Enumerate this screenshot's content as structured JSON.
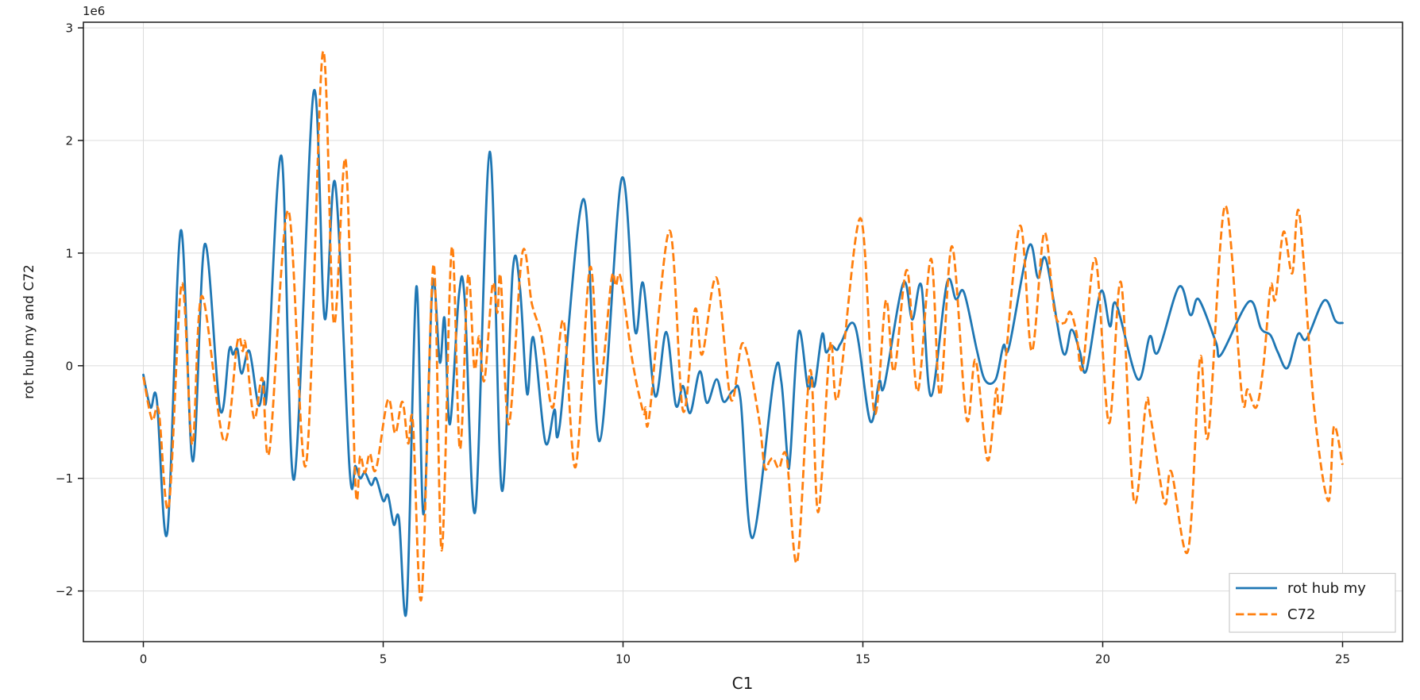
{
  "figure": {
    "background": "#ffffff",
    "grid_color": "#dcdcdc",
    "spine_color": "#262626",
    "tick_color": "#1a1a1a"
  },
  "chart_data": {
    "type": "line",
    "title": "",
    "xlabel": "C1",
    "ylabel": "rot hub my and C72",
    "y_offset_text": "1e6",
    "y_multiplier": 1000000,
    "xlim": [
      -1.25,
      26.25
    ],
    "ylim": [
      -2.45,
      3.05
    ],
    "x_ticks": [
      0,
      5,
      10,
      15,
      20,
      25
    ],
    "y_ticks": [
      -2,
      -1,
      0,
      1,
      2,
      3
    ],
    "grid": true,
    "legend": {
      "location": "lower right",
      "entries": [
        "rot hub my",
        "C72"
      ]
    },
    "series": [
      {
        "name": "rot hub my",
        "color": "#1f77b4",
        "linestyle": "solid",
        "linewidth": 2.8,
        "points": [
          [
            0,
            -0.08
          ],
          [
            0.15,
            -0.37
          ],
          [
            0.28,
            -0.3
          ],
          [
            0.5,
            -1.48
          ],
          [
            0.78,
            1.2
          ],
          [
            1.03,
            -0.85
          ],
          [
            1.28,
            1.08
          ],
          [
            1.6,
            -0.39
          ],
          [
            1.79,
            0.14
          ],
          [
            1.87,
            0.1
          ],
          [
            1.96,
            0.15
          ],
          [
            2.05,
            -0.07
          ],
          [
            2.21,
            0.13
          ],
          [
            2.4,
            -0.35
          ],
          [
            2.51,
            -0.14
          ],
          [
            2.58,
            -0.22
          ],
          [
            2.88,
            1.86
          ],
          [
            3.14,
            -1.01
          ],
          [
            3.55,
            2.43
          ],
          [
            3.78,
            0.42
          ],
          [
            4,
            1.62
          ],
          [
            4.3,
            -0.92
          ],
          [
            4.42,
            -0.89
          ],
          [
            4.52,
            -1
          ],
          [
            4.62,
            -0.95
          ],
          [
            4.75,
            -1.06
          ],
          [
            4.85,
            -1
          ],
          [
            5,
            -1.2
          ],
          [
            5.1,
            -1.15
          ],
          [
            5.22,
            -1.41
          ],
          [
            5.33,
            -1.36
          ],
          [
            5.49,
            -2.15
          ],
          [
            5.69,
            0.7
          ],
          [
            5.84,
            -1.32
          ],
          [
            6.03,
            0.73
          ],
          [
            6.18,
            0.03
          ],
          [
            6.28,
            0.42
          ],
          [
            6.39,
            -0.52
          ],
          [
            6.58,
            0.63
          ],
          [
            6.7,
            0.58
          ],
          [
            6.92,
            -1.29
          ],
          [
            7.22,
            1.9
          ],
          [
            7.47,
            -1.1
          ],
          [
            7.7,
            0.84
          ],
          [
            7.85,
            0.7
          ],
          [
            8,
            -0.25
          ],
          [
            8.13,
            0.25
          ],
          [
            8.38,
            -0.68
          ],
          [
            8.57,
            -0.39
          ],
          [
            8.68,
            -0.53
          ],
          [
            9.18,
            1.48
          ],
          [
            9.51,
            -0.67
          ],
          [
            9.97,
            1.66
          ],
          [
            10.25,
            0.31
          ],
          [
            10.42,
            0.73
          ],
          [
            10.67,
            -0.27
          ],
          [
            10.9,
            0.3
          ],
          [
            11.1,
            -0.35
          ],
          [
            11.25,
            -0.18
          ],
          [
            11.4,
            -0.42
          ],
          [
            11.6,
            -0.05
          ],
          [
            11.75,
            -0.33
          ],
          [
            11.95,
            -0.12
          ],
          [
            12.1,
            -0.32
          ],
          [
            12.3,
            -0.22
          ],
          [
            12.45,
            -0.3
          ],
          [
            12.7,
            -1.53
          ],
          [
            13.15,
            -0.09
          ],
          [
            13.3,
            -0.14
          ],
          [
            13.43,
            -0.83
          ],
          [
            13.49,
            -0.78
          ],
          [
            13.66,
            0.3
          ],
          [
            13.85,
            -0.19
          ],
          [
            13.93,
            -0.1
          ],
          [
            14,
            -0.17
          ],
          [
            14.15,
            0.28
          ],
          [
            14.23,
            0.12
          ],
          [
            14.34,
            0.18
          ],
          [
            14.46,
            0.14
          ],
          [
            14.54,
            0.2
          ],
          [
            14.84,
            0.35
          ],
          [
            15.15,
            -0.49
          ],
          [
            15.34,
            -0.14
          ],
          [
            15.45,
            -0.17
          ],
          [
            15.84,
            0.73
          ],
          [
            16.03,
            0.41
          ],
          [
            16.22,
            0.71
          ],
          [
            16.42,
            -0.27
          ],
          [
            16.75,
            0.73
          ],
          [
            16.94,
            0.59
          ],
          [
            17.11,
            0.65
          ],
          [
            17.38,
            0.13
          ],
          [
            17.55,
            -0.13
          ],
          [
            17.77,
            -0.12
          ],
          [
            17.93,
            0.18
          ],
          [
            18.05,
            0.17
          ],
          [
            18.46,
            1.06
          ],
          [
            18.65,
            0.78
          ],
          [
            18.82,
            0.94
          ],
          [
            19.17,
            0.12
          ],
          [
            19.35,
            0.32
          ],
          [
            19.52,
            0.13
          ],
          [
            19.66,
            -0.04
          ],
          [
            19.96,
            0.66
          ],
          [
            20.15,
            0.35
          ],
          [
            20.28,
            0.55
          ],
          [
            20.73,
            -0.12
          ],
          [
            20.98,
            0.26
          ],
          [
            21.15,
            0.12
          ],
          [
            21.59,
            0.7
          ],
          [
            21.83,
            0.45
          ],
          [
            22,
            0.59
          ],
          [
            22.36,
            0.21
          ],
          [
            22.47,
            0.1
          ],
          [
            23.05,
            0.57
          ],
          [
            23.3,
            0.33
          ],
          [
            23.5,
            0.27
          ],
          [
            23.65,
            0.12
          ],
          [
            23.85,
            -0.02
          ],
          [
            24.07,
            0.28
          ],
          [
            24.25,
            0.24
          ],
          [
            24.62,
            0.58
          ],
          [
            24.85,
            0.4
          ],
          [
            25,
            0.38
          ]
        ]
      },
      {
        "name": "C72",
        "color": "#ff7f0e",
        "linestyle": "dashed",
        "linewidth": 2.8,
        "points": [
          [
            0,
            -0.1
          ],
          [
            0.18,
            -0.48
          ],
          [
            0.32,
            -0.4
          ],
          [
            0.53,
            -1.25
          ],
          [
            0.8,
            0.73
          ],
          [
            1.02,
            -0.7
          ],
          [
            1.22,
            0.62
          ],
          [
            1.68,
            -0.67
          ],
          [
            1.96,
            0.21
          ],
          [
            2.07,
            0.13
          ],
          [
            2.13,
            0.19
          ],
          [
            2.31,
            -0.47
          ],
          [
            2.48,
            -0.11
          ],
          [
            2.63,
            -0.75
          ],
          [
            3.02,
            1.38
          ],
          [
            3.39,
            -0.88
          ],
          [
            3.74,
            2.78
          ],
          [
            3.97,
            0.38
          ],
          [
            4.22,
            1.82
          ],
          [
            4.42,
            -1.05
          ],
          [
            4.52,
            -0.8
          ],
          [
            4.62,
            -0.95
          ],
          [
            4.72,
            -0.78
          ],
          [
            4.85,
            -0.92
          ],
          [
            5.1,
            -0.3
          ],
          [
            5.25,
            -0.6
          ],
          [
            5.4,
            -0.32
          ],
          [
            5.52,
            -0.69
          ],
          [
            5.62,
            -0.5
          ],
          [
            5.8,
            -2.06
          ],
          [
            6.05,
            0.9
          ],
          [
            6.22,
            -1.64
          ],
          [
            6.43,
            1.05
          ],
          [
            6.6,
            -0.74
          ],
          [
            6.77,
            0.8
          ],
          [
            6.9,
            -0.02
          ],
          [
            7,
            0.26
          ],
          [
            7.11,
            -0.13
          ],
          [
            7.28,
            0.72
          ],
          [
            7.38,
            0.47
          ],
          [
            7.45,
            0.78
          ],
          [
            7.62,
            -0.52
          ],
          [
            7.9,
            1
          ],
          [
            8.1,
            0.55
          ],
          [
            8.27,
            0.32
          ],
          [
            8.35,
            0.12
          ],
          [
            8.54,
            -0.37
          ],
          [
            8.76,
            0.4
          ],
          [
            9.01,
            -0.9
          ],
          [
            9.31,
            0.87
          ],
          [
            9.51,
            -0.16
          ],
          [
            9.76,
            0.77
          ],
          [
            9.85,
            0.71
          ],
          [
            9.95,
            0.78
          ],
          [
            10.2,
            0.03
          ],
          [
            10.42,
            -0.41
          ],
          [
            10.47,
            -0.37
          ],
          [
            10.55,
            -0.44
          ],
          [
            10.97,
            1.2
          ],
          [
            11.25,
            -0.4
          ],
          [
            11.5,
            0.5
          ],
          [
            11.65,
            0.1
          ],
          [
            11.95,
            0.78
          ],
          [
            12.25,
            -0.3
          ],
          [
            12.5,
            0.2
          ],
          [
            12.82,
            -0.43
          ],
          [
            12.95,
            -0.9
          ],
          [
            13.05,
            -0.85
          ],
          [
            13.13,
            -0.82
          ],
          [
            13.25,
            -0.91
          ],
          [
            13.41,
            -0.81
          ],
          [
            13.63,
            -1.74
          ],
          [
            13.9,
            -0.04
          ],
          [
            14.07,
            -1.3
          ],
          [
            14.32,
            0.19
          ],
          [
            14.48,
            -0.28
          ],
          [
            14.95,
            1.31
          ],
          [
            15.24,
            -0.42
          ],
          [
            15.48,
            0.58
          ],
          [
            15.65,
            -0.05
          ],
          [
            15.92,
            0.85
          ],
          [
            16.14,
            -0.23
          ],
          [
            16.42,
            0.95
          ],
          [
            16.61,
            -0.26
          ],
          [
            16.86,
            1.06
          ],
          [
            17.16,
            -0.47
          ],
          [
            17.35,
            0.05
          ],
          [
            17.6,
            -0.84
          ],
          [
            17.78,
            -0.21
          ],
          [
            17.88,
            -0.38
          ],
          [
            18.27,
            1.24
          ],
          [
            18.52,
            0.13
          ],
          [
            18.78,
            1.18
          ],
          [
            19,
            0.47
          ],
          [
            19.2,
            0.38
          ],
          [
            19.32,
            0.48
          ],
          [
            19.45,
            0.3
          ],
          [
            19.58,
            -0.02
          ],
          [
            19.85,
            0.95
          ],
          [
            20.13,
            -0.51
          ],
          [
            20.38,
            0.74
          ],
          [
            20.65,
            -1.2
          ],
          [
            20.9,
            -0.34
          ],
          [
            21,
            -0.46
          ],
          [
            21.29,
            -1.22
          ],
          [
            21.43,
            -0.94
          ],
          [
            21.78,
            -1.64
          ],
          [
            22.03,
            0.07
          ],
          [
            22.2,
            -0.62
          ],
          [
            22.55,
            1.42
          ],
          [
            22.9,
            -0.26
          ],
          [
            23.02,
            -0.21
          ],
          [
            23.2,
            -0.37
          ],
          [
            23.35,
            0
          ],
          [
            23.5,
            0.71
          ],
          [
            23.6,
            0.59
          ],
          [
            23.77,
            1.19
          ],
          [
            23.95,
            0.82
          ],
          [
            24.1,
            1.35
          ],
          [
            24.4,
            -0.35
          ],
          [
            24.7,
            -1.2
          ],
          [
            24.82,
            -0.54
          ],
          [
            25,
            -0.88
          ]
        ]
      }
    ]
  }
}
